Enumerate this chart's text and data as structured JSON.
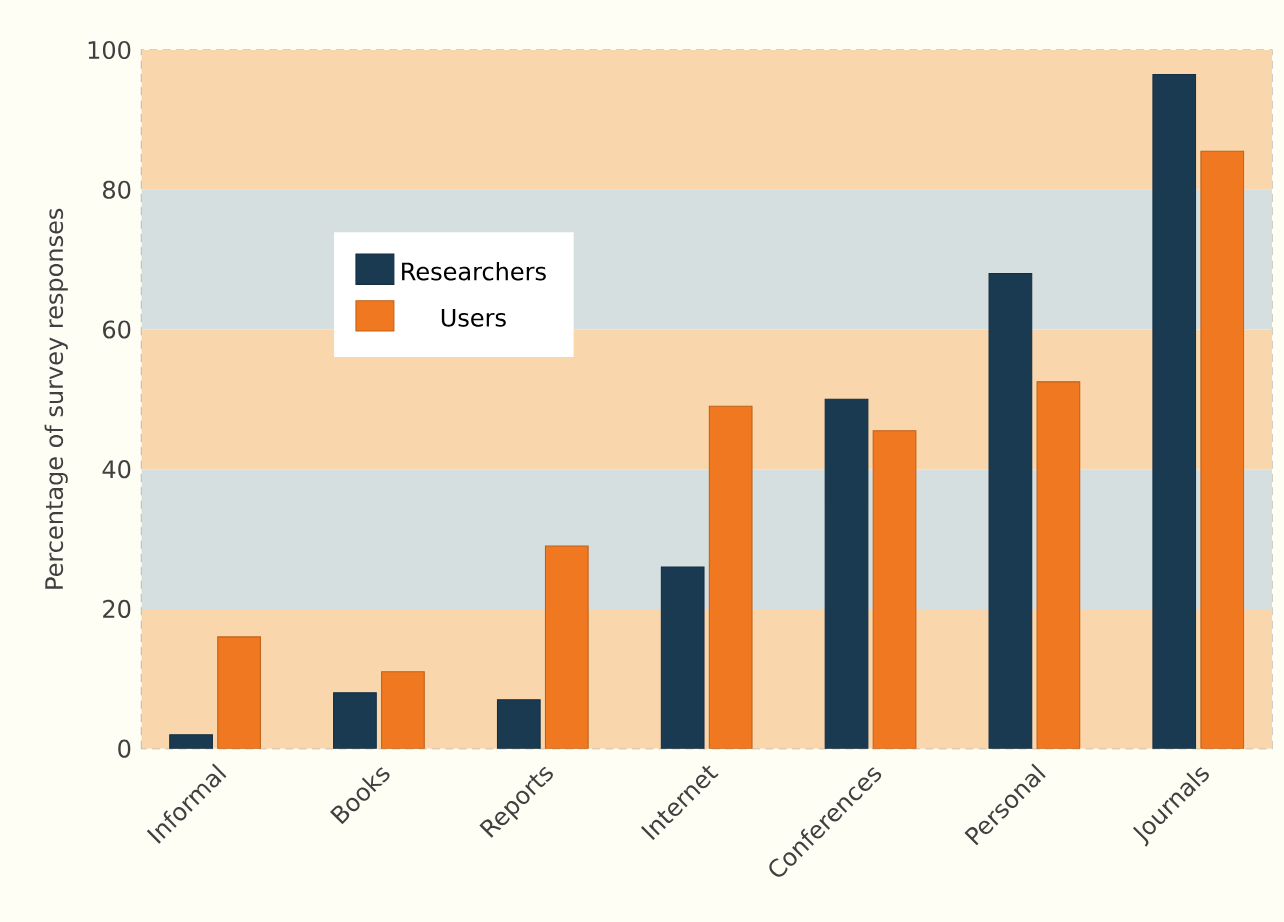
{
  "chart_data": {
    "type": "bar",
    "ylabel": "Percentage of survey responses",
    "categories": [
      "Informal",
      "Books",
      "Reports",
      "Internet",
      "Conferences",
      "Personal",
      "Journals"
    ],
    "series": [
      {
        "name": "Researchers",
        "color": "#1a3a52",
        "values": [
          2,
          8,
          7,
          26,
          50,
          68,
          96.5
        ]
      },
      {
        "name": "Users",
        "color": "#f07820",
        "values": [
          16,
          11,
          29,
          49,
          45.5,
          52.5,
          85.5
        ]
      }
    ],
    "ylim": [
      0,
      100
    ],
    "yticks": [
      0,
      20,
      40,
      60,
      80,
      100
    ],
    "bands": [
      {
        "axis": "y",
        "from": 0,
        "to": 20,
        "color": "#f9d6ac"
      },
      {
        "axis": "y",
        "from": 20,
        "to": 40,
        "color": "#d5dfe0"
      },
      {
        "axis": "y",
        "from": 40,
        "to": 60,
        "color": "#f9d6ac"
      },
      {
        "axis": "y",
        "from": 60,
        "to": 80,
        "color": "#d5dfe0"
      },
      {
        "axis": "y",
        "from": 80,
        "to": 100,
        "color": "#f9d6ac"
      }
    ],
    "legend": "top left"
  }
}
